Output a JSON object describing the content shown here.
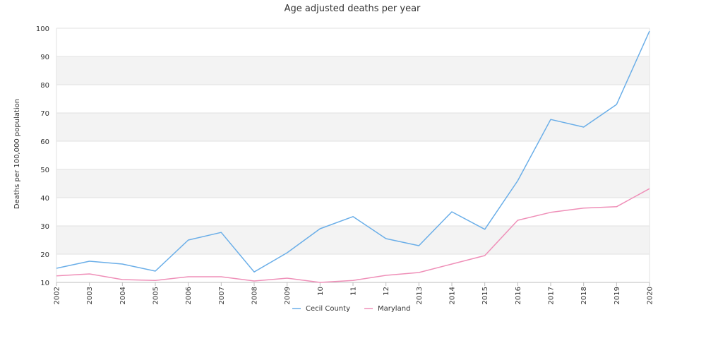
{
  "chart_data": {
    "type": "line",
    "title": "Age adjusted deaths per year",
    "xlabel": "",
    "ylabel": "Deaths per 100,000 population",
    "ylim": [
      10,
      100
    ],
    "yticks": [
      10,
      20,
      30,
      40,
      50,
      60,
      70,
      80,
      90,
      100
    ],
    "x": [
      "2002",
      "2003",
      "2004",
      "2005",
      "2006",
      "2007",
      "2008",
      "2009",
      "2010",
      "2011",
      "2012",
      "2013",
      "2014",
      "2015",
      "2016",
      "2017",
      "2018",
      "2019",
      "2020"
    ],
    "x_tick_labels": [
      "2002",
      "2003",
      "2004",
      "2005",
      "2006",
      "2007",
      "2008",
      "2009",
      "10",
      "11",
      "12",
      "2013",
      "2014",
      "2015",
      "2016",
      "2017",
      "2018",
      "2019",
      "2020"
    ],
    "grid": true,
    "legend_position": "bottom",
    "series": [
      {
        "name": "Cecil County",
        "color": "#6aaee8",
        "values": [
          15.0,
          17.5,
          16.5,
          14.0,
          25.0,
          27.7,
          13.7,
          20.5,
          29.0,
          33.3,
          25.5,
          23.0,
          35.0,
          28.8,
          46.0,
          67.7,
          65.0,
          73.0,
          99.0
        ]
      },
      {
        "name": "Maryland",
        "color": "#ef8fb8",
        "values": [
          12.3,
          13.0,
          11.0,
          10.7,
          12.0,
          12.0,
          10.5,
          11.5,
          10.0,
          10.7,
          12.5,
          13.5,
          16.5,
          19.5,
          32.0,
          34.8,
          36.3,
          36.8,
          43.2
        ]
      }
    ]
  }
}
